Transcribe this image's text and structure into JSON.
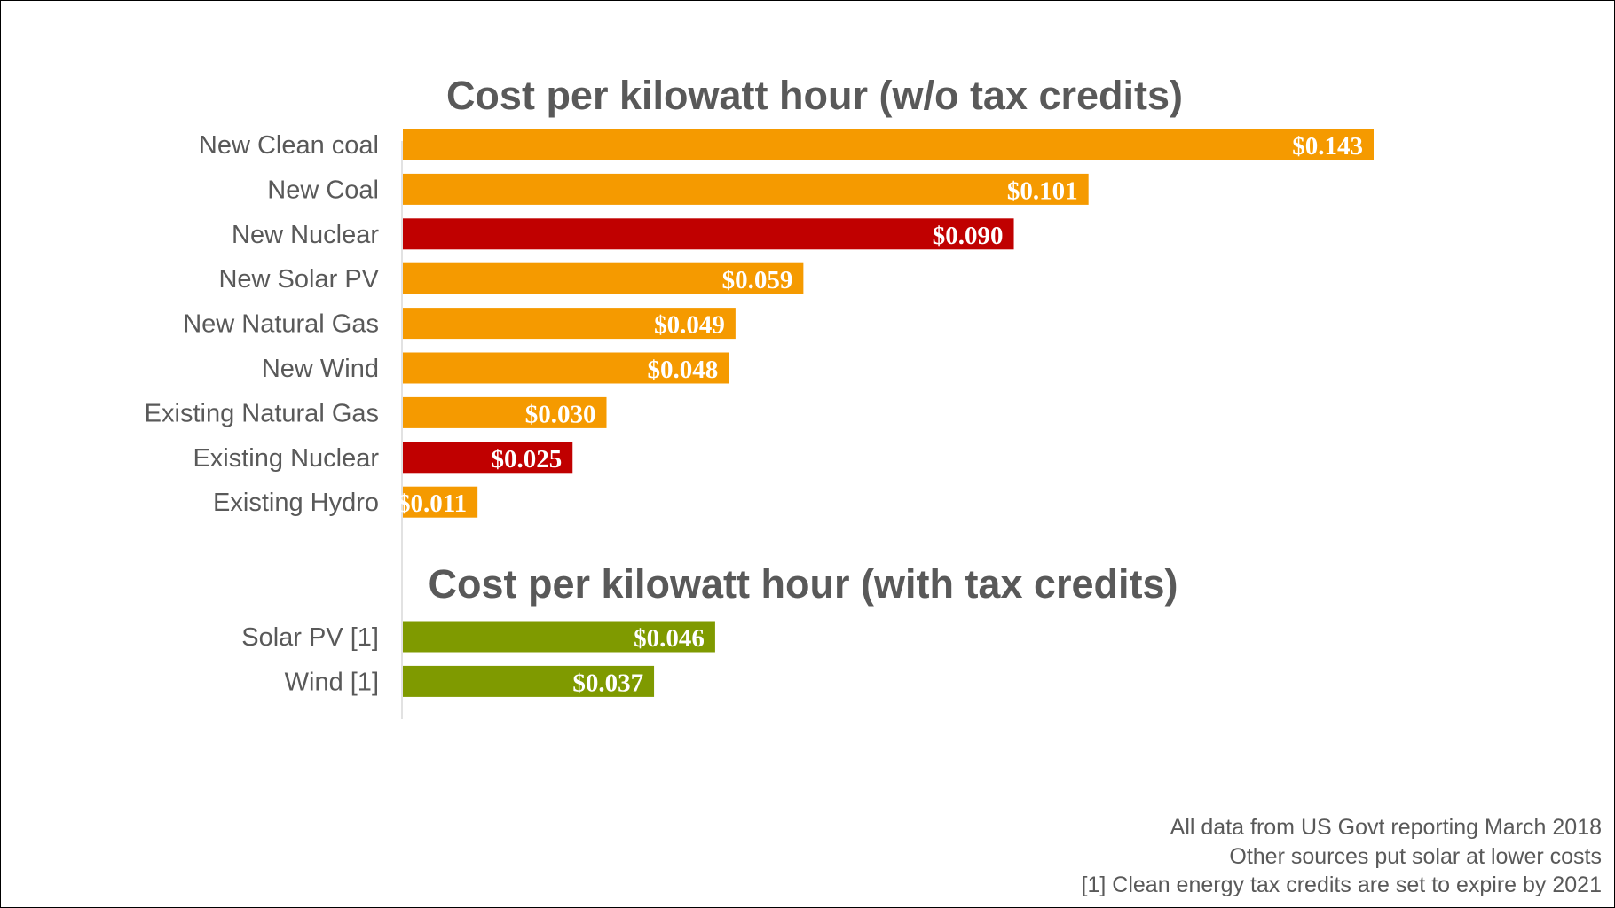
{
  "chart_data": [
    {
      "type": "bar",
      "orientation": "horizontal",
      "title": "Cost per kilowatt hour (w/o tax credits)",
      "categories": [
        "New Clean coal",
        "New Coal",
        "New Nuclear",
        "New Solar PV",
        "New Natural Gas",
        "New Wind",
        "Existing Natural Gas",
        "Existing Nuclear",
        "Existing Hydro"
      ],
      "values": [
        0.143,
        0.101,
        0.09,
        0.059,
        0.049,
        0.048,
        0.03,
        0.025,
        0.011
      ],
      "data_labels": [
        "$0.143",
        "$0.101",
        "$0.090",
        "$0.059",
        "$0.049",
        "$0.048",
        "$0.030",
        "$0.025",
        "$0.011"
      ],
      "colors": [
        "#f59a00",
        "#f59a00",
        "#c00000",
        "#f59a00",
        "#f59a00",
        "#f59a00",
        "#f59a00",
        "#c00000",
        "#f59a00"
      ],
      "xlim": [
        0,
        0.16
      ],
      "grid": false
    },
    {
      "type": "bar",
      "orientation": "horizontal",
      "title": "Cost per kilowatt hour (with tax credits)",
      "categories": [
        "Solar PV [1]",
        "Wind [1]"
      ],
      "values": [
        0.046,
        0.037
      ],
      "data_labels": [
        "$0.046",
        "$0.037"
      ],
      "colors": [
        "#7f9a00",
        "#7f9a00"
      ],
      "xlim": [
        0,
        0.16
      ],
      "grid": false
    }
  ],
  "footnotes": [
    "All data from US Govt reporting March 2018",
    "Other sources put solar at lower costs",
    "[1] Clean energy tax credits are set to expire by 2021"
  ],
  "colors": {
    "text": "#595959",
    "axis": "#d9d9d9",
    "orange": "#f59a00",
    "red": "#c00000",
    "green": "#7f9a00"
  }
}
